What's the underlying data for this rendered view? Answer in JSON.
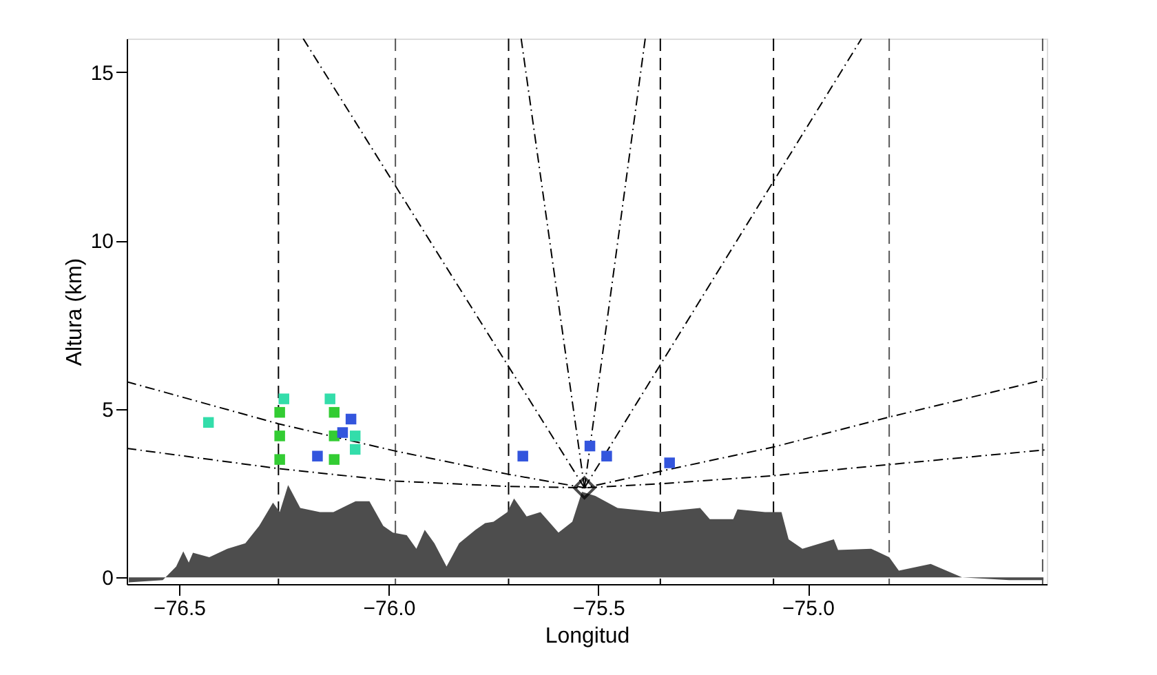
{
  "chart_data": {
    "type": "line",
    "xlabel": "Longitud",
    "ylabel": "Altura (km)",
    "xlim": [
      -76.625,
      -74.43
    ],
    "ylim": [
      -0.2,
      16
    ],
    "xticks": [
      -76.5,
      {
        "value": -76.0,
        "label": "−76.0"
      },
      -75.5,
      {
        "value": -75.0,
        "label": "−75.0"
      }
    ],
    "yticks": [
      0,
      5,
      10,
      15
    ],
    "grid": false,
    "series": [
      {
        "type": "area",
        "color": "#4d4d4d",
        "x": [
          -76.62,
          -76.539,
          -76.507,
          -76.49,
          -76.477,
          -76.467,
          -76.428,
          -76.385,
          -76.342,
          -76.309,
          -76.276,
          -76.26,
          -76.24,
          -76.211,
          -76.164,
          -76.132,
          -76.112,
          -76.079,
          -76.046,
          -76.013,
          -75.99,
          -75.957,
          -75.934,
          -75.914,
          -75.891,
          -75.862,
          -75.832,
          -75.793,
          -75.77,
          -75.75,
          -75.717,
          -75.701,
          -75.671,
          -75.638,
          -75.595,
          -75.562,
          -75.539,
          -75.507,
          -75.454,
          -75.355,
          -75.257,
          -75.234,
          -75.178,
          -75.168,
          -75.102,
          -75.063,
          -75.046,
          -75.013,
          -74.938,
          -74.928,
          -74.849,
          -74.806,
          -74.783,
          -74.707,
          -74.632,
          -74.52,
          -74.438
        ],
        "values": [
          -0.15,
          -0.08,
          0.32,
          0.77,
          0.44,
          0.73,
          0.6,
          0.85,
          1.01,
          1.53,
          2.22,
          1.94,
          2.74,
          2.06,
          1.94,
          1.94,
          2.06,
          2.26,
          2.26,
          1.53,
          1.33,
          1.25,
          0.85,
          1.41,
          1.01,
          0.32,
          1.01,
          1.41,
          1.61,
          1.65,
          1.94,
          2.34,
          1.81,
          1.94,
          1.33,
          1.65,
          2.54,
          2.42,
          2.06,
          1.94,
          2.06,
          1.73,
          1.73,
          2.02,
          1.94,
          1.94,
          1.13,
          0.85,
          1.13,
          0.81,
          0.85,
          0.6,
          0.2,
          0.4,
          0,
          -0.08,
          -0.08
        ]
      },
      {
        "color": "#000000",
        "line_style": "dashed",
        "x": [
          -76.625,
          -76.263,
          -75.984,
          -75.714,
          -75.533,
          -75.352,
          -75.082,
          -74.806,
          -74.43
        ],
        "values": [
          5.81,
          4.56,
          3.75,
          3.06,
          2.66,
          3.15,
          3.87,
          4.76,
          5.89
        ]
      },
      {
        "color": "#000000",
        "line_style": "dashed",
        "x": [
          -76.625,
          -76.263,
          -75.984,
          -75.714,
          -75.533,
          -75.352,
          -75.082,
          -74.806,
          -74.43
        ],
        "values": [
          3.83,
          3.23,
          2.86,
          2.7,
          2.66,
          2.78,
          3.02,
          3.35,
          3.79
        ]
      },
      {
        "color": "#000000",
        "line_style": "dashed",
        "x": [
          -75.533,
          -76.204
        ],
        "values": [
          2.66,
          16
        ]
      },
      {
        "color": "#000000",
        "line_style": "dashed",
        "x": [
          -75.533,
          -75.684
        ],
        "values": [
          2.66,
          16
        ]
      },
      {
        "color": "#000000",
        "line_style": "dashed",
        "x": [
          -75.533,
          -75.388
        ],
        "values": [
          2.66,
          16
        ]
      },
      {
        "color": "#000000",
        "line_style": "dashed",
        "x": [
          -75.533,
          -74.872
        ],
        "values": [
          2.66,
          16
        ]
      },
      {
        "type": "scatter",
        "color": "#33cc33",
        "marker": "square",
        "x": [
          -76.26,
          -76.26,
          -76.26,
          -76.13,
          -76.13,
          -76.13
        ],
        "values": [
          3.5,
          4.2,
          4.9,
          3.5,
          4.2,
          4.9
        ]
      },
      {
        "type": "scatter",
        "color": "#33ddaa",
        "marker": "square",
        "x": [
          -76.43,
          -76.25,
          -76.14,
          -76.08,
          -76.08
        ],
        "values": [
          4.6,
          5.3,
          5.3,
          3.8,
          4.2
        ]
      },
      {
        "type": "scatter",
        "color": "#3355dd",
        "marker": "square",
        "x": [
          -76.17,
          -76.11,
          -76.09,
          -75.52,
          -75.48,
          -75.33,
          -75.68
        ],
        "values": [
          3.6,
          4.3,
          4.7,
          3.9,
          3.6,
          3.4,
          3.6
        ]
      },
      {
        "type": "scatter",
        "color": "#000000",
        "marker": "diamond",
        "x": [
          -75.533
        ],
        "values": [
          2.66
        ]
      }
    ],
    "ref_lines": [
      {
        "axis": "x",
        "value": -76.263,
        "color": "#000000",
        "line_style": "dashed"
      },
      {
        "axis": "x",
        "value": -75.984,
        "color": "#555555",
        "line_style": "dashed"
      },
      {
        "axis": "x",
        "value": -75.714,
        "color": "#000000",
        "line_style": "dashed"
      },
      {
        "axis": "x",
        "value": -75.352,
        "color": "#000000",
        "line_style": "dashed"
      },
      {
        "axis": "x",
        "value": -75.082,
        "color": "#000000",
        "line_style": "dashed"
      },
      {
        "axis": "x",
        "value": -74.806,
        "color": "#555555",
        "line_style": "dashed"
      },
      {
        "axis": "x",
        "value": -74.44,
        "color": "#555555",
        "line_style": "dashed"
      }
    ]
  }
}
